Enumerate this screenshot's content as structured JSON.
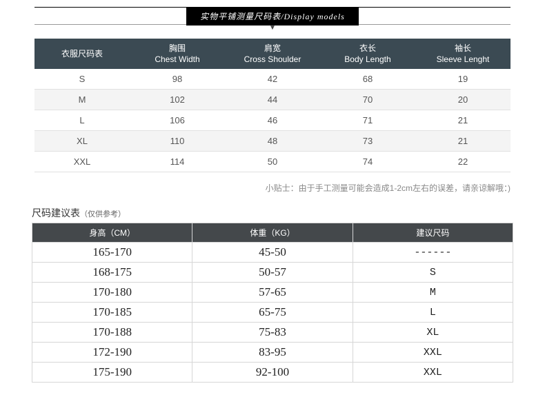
{
  "title": "实物平铺测量尺码表/Display models",
  "arrow": "▼",
  "size_table": {
    "headers": [
      {
        "cn": "衣服尺码表",
        "en": ""
      },
      {
        "cn": "胸围",
        "en": "Chest Width"
      },
      {
        "cn": "肩宽",
        "en": "Cross Shoulder"
      },
      {
        "cn": "衣长",
        "en": "Body Length"
      },
      {
        "cn": "袖长",
        "en": "Sleeve Lenght"
      }
    ],
    "rows": [
      [
        "S",
        "98",
        "42",
        "68",
        "19"
      ],
      [
        "M",
        "102",
        "44",
        "70",
        "20"
      ],
      [
        "L",
        "106",
        "46",
        "71",
        "21"
      ],
      [
        "XL",
        "110",
        "48",
        "73",
        "21"
      ],
      [
        "XXL",
        "114",
        "50",
        "74",
        "22"
      ]
    ],
    "header_bg": "#3b4a53",
    "row_alt_bg": "#f4f4f4",
    "border_color": "#e1e1e1"
  },
  "tip": "小贴士：由于手工测量可能会造成1-2cm左右的误差，请亲谅解哦：)",
  "recommend": {
    "title_main": "尺码建议表",
    "title_sub": "（仅供参考）",
    "headers": [
      "身高（CM）",
      "体重（KG）",
      "建议尺码"
    ],
    "rows": [
      [
        "165-170",
        "45-50",
        "------"
      ],
      [
        "168-175",
        "50-57",
        "S"
      ],
      [
        "170-180",
        "57-65",
        "M"
      ],
      [
        "170-185",
        "65-75",
        "L"
      ],
      [
        "170-188",
        "75-83",
        "XL"
      ],
      [
        "172-190",
        "83-95",
        "XXL"
      ],
      [
        "175-190",
        "92-100",
        "XXL"
      ]
    ],
    "header_bg": "#44484b",
    "border_color": "#d6d6d6"
  }
}
